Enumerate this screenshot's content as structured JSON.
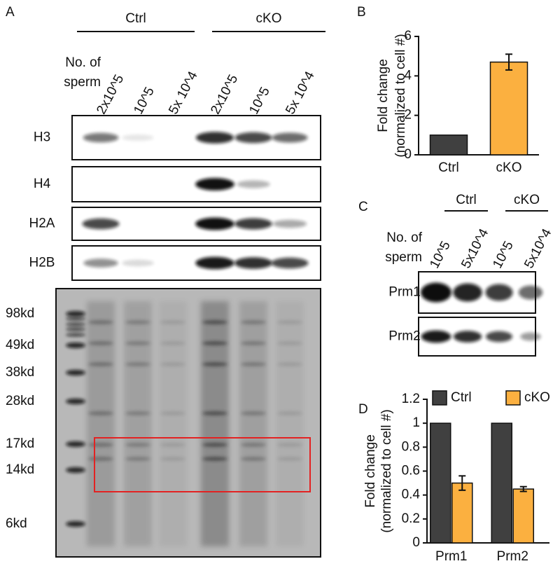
{
  "panel_a": {
    "label": "A",
    "groups": [
      "Ctrl",
      "cKO"
    ],
    "row_label": [
      "No. of",
      "sperm"
    ],
    "lanes": [
      "2x10^5",
      "10^5",
      "5x 10^4",
      "2x10^5",
      "10^5",
      "5x 10^4"
    ],
    "blots": [
      "H3",
      "H4",
      "H2A",
      "H2B"
    ],
    "markers": [
      "98kd",
      "49kd",
      "38kd",
      "28kd",
      "17kd",
      "14kd",
      "6kd"
    ]
  },
  "panel_c": {
    "label": "C",
    "groups": [
      "Ctrl",
      "cKO"
    ],
    "row_label": [
      "No. of",
      "sperm"
    ],
    "lanes": [
      "10^5",
      "5x10^4",
      "10^5",
      "5x10^4"
    ],
    "blots": [
      "Prm1",
      "Prm2"
    ]
  },
  "chart_data": [
    {
      "type": "bar",
      "label": "B",
      "ylabel": [
        "Fold change",
        "(normalized to cell #)"
      ],
      "categories": [
        "Ctrl",
        "cKO"
      ],
      "values": [
        1,
        4.7
      ],
      "errors": [
        null,
        0.4
      ],
      "colors": [
        "#404040",
        "#fbb040"
      ],
      "ylim": [
        0,
        6
      ],
      "yticks": [
        0,
        2,
        4,
        6
      ]
    },
    {
      "type": "grouped_bar",
      "label": "D",
      "ylabel": [
        "Fold change",
        "(normalized to cell #)"
      ],
      "categories": [
        "Prm1",
        "Prm2"
      ],
      "series": [
        {
          "name": "Ctrl",
          "color": "#404040",
          "values": [
            1,
            1
          ]
        },
        {
          "name": "cKO",
          "color": "#fbb040",
          "values": [
            0.5,
            0.45
          ],
          "errors": [
            0.06,
            0.02
          ]
        }
      ],
      "ylim": [
        0,
        1.2
      ],
      "yticks": [
        0,
        0.2,
        0.4,
        0.6,
        0.8,
        1,
        1.2
      ],
      "legend": "top"
    }
  ]
}
